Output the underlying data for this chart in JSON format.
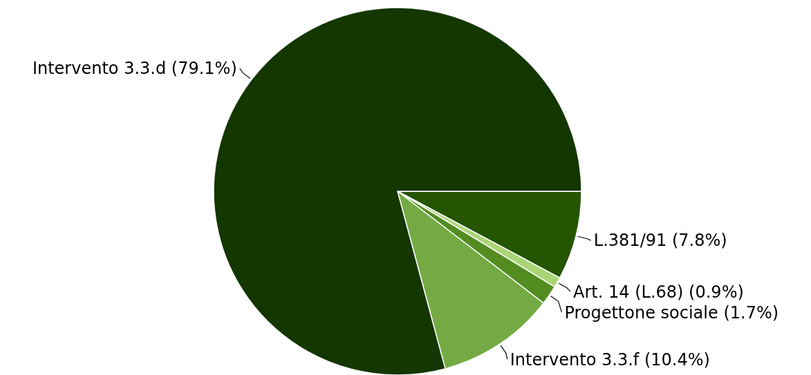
{
  "chart_data": {
    "type": "pie",
    "categories": [
      "L.381/91",
      "Art. 14 (L.68)",
      "Progettone sociale",
      "Intervento 3.3.f",
      "Intervento 3.3.d"
    ],
    "values": [
      7.8,
      0.9,
      1.7,
      10.4,
      79.1
    ],
    "value_labels": [
      "(7.8%)",
      "(0.9%)",
      "(1.7%)",
      "(10.4%)",
      "(79.1%)"
    ],
    "colors": [
      "#245501",
      "#aad576",
      "#538d22",
      "#74aa44",
      "#143601"
    ]
  }
}
